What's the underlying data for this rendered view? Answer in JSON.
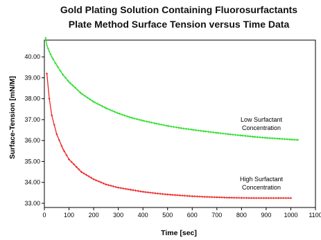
{
  "chart_data": {
    "type": "line",
    "title": "Gold Plating Solution Containing Fluorosurfactants",
    "subtitle": "Plate Method Surface Tension versus Time Data",
    "xlabel": "Time [sec]",
    "ylabel": "Surface-Tension [mN/M]",
    "xlim": [
      0,
      1100
    ],
    "ylim": [
      32.8,
      40.8
    ],
    "x_ticks": [
      "0",
      "100",
      "200",
      "300",
      "400",
      "500",
      "600",
      "700",
      "800",
      "900",
      "1000",
      "1100"
    ],
    "y_ticks": [
      "33.00",
      "34.00",
      "35.00",
      "36.00",
      "37.00",
      "38.00",
      "39.00",
      "40.00"
    ],
    "grid": false,
    "legend": "none",
    "series": [
      {
        "color": "#22dd22",
        "x": [
          5,
          10,
          20,
          30,
          50,
          75,
          100,
          150,
          200,
          250,
          300,
          350,
          400,
          450,
          500,
          550,
          600,
          650,
          700,
          750,
          800,
          850,
          900,
          950,
          1000,
          1030
        ],
        "values": [
          40.9,
          40.55,
          40.25,
          40.0,
          39.6,
          39.15,
          38.8,
          38.25,
          37.85,
          37.55,
          37.3,
          37.1,
          36.95,
          36.82,
          36.7,
          36.6,
          36.52,
          36.44,
          36.37,
          36.3,
          36.24,
          36.18,
          36.13,
          36.09,
          36.05,
          36.03
        ]
      },
      {
        "color": "#ee2222",
        "x": [
          10,
          20,
          30,
          50,
          75,
          100,
          150,
          200,
          250,
          300,
          350,
          400,
          450,
          500,
          550,
          600,
          650,
          700,
          750,
          800,
          850,
          900,
          950,
          1000
        ],
        "values": [
          39.2,
          38.0,
          37.2,
          36.3,
          35.6,
          35.1,
          34.5,
          34.15,
          33.9,
          33.75,
          33.65,
          33.55,
          33.48,
          33.42,
          33.38,
          33.34,
          33.31,
          33.29,
          33.27,
          33.26,
          33.25,
          33.25,
          33.25,
          33.25
        ]
      }
    ],
    "annotations": [
      {
        "lines": [
          "Low Surfactant",
          "Concentration"
        ]
      },
      {
        "lines": [
          "High Surfactant",
          "Concentration"
        ]
      }
    ]
  }
}
